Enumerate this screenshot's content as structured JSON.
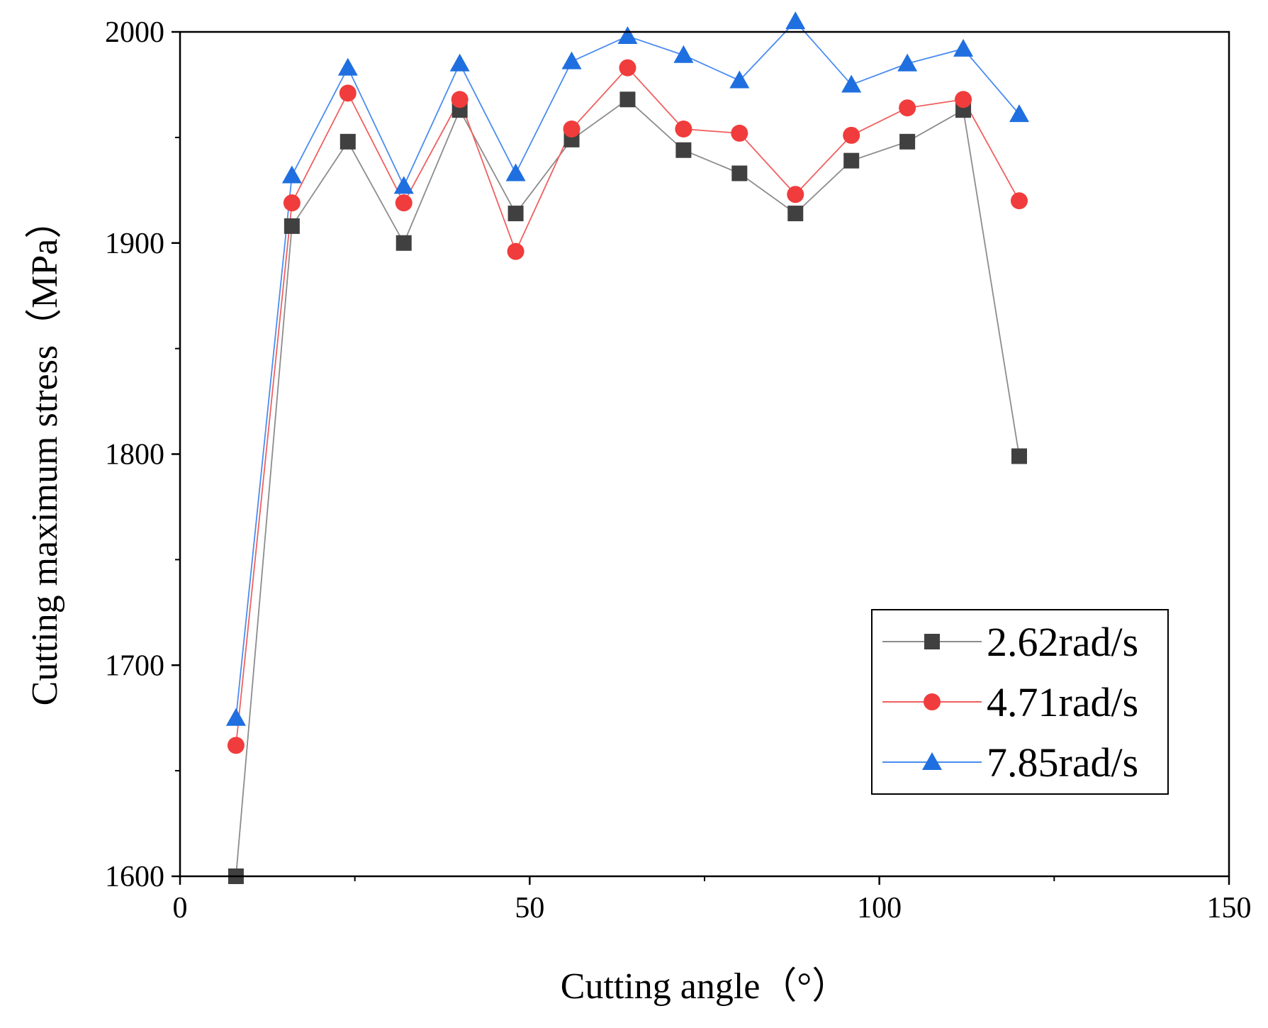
{
  "chart_data": {
    "type": "line",
    "title": "",
    "xlabel": "Cutting angle（°）",
    "ylabel": "Cutting maximum stress（MPa）",
    "xlim": [
      0,
      150
    ],
    "ylim": [
      1600,
      2000
    ],
    "xticks": [
      0,
      50,
      100,
      150
    ],
    "yticks": [
      1600,
      1700,
      1800,
      1900,
      2000
    ],
    "grid": false,
    "legend_position": "bottom-right",
    "x": [
      8,
      16,
      24,
      32,
      40,
      48,
      56,
      64,
      72,
      80,
      88,
      96,
      104,
      112,
      120
    ],
    "series": [
      {
        "name": "2.62rad/s",
        "marker": "square",
        "color": "#404040",
        "line_color": "#8c8c8c",
        "values": [
          1600,
          1908,
          1948,
          1900,
          1963,
          1914,
          1949,
          1968,
          1944,
          1933,
          1914,
          1939,
          1948,
          1963,
          1799
        ]
      },
      {
        "name": "4.71rad/s",
        "marker": "circle",
        "color": "#f03c3c",
        "line_color": "#f06060",
        "values": [
          1662,
          1919,
          1971,
          1919,
          1968,
          1896,
          1954,
          1983,
          1954,
          1952,
          1923,
          1951,
          1964,
          1968,
          1920
        ]
      },
      {
        "name": "7.85rad/s",
        "marker": "triangle",
        "color": "#1f6fe0",
        "line_color": "#4a8cf0",
        "values": [
          1675,
          1932,
          1983,
          1927,
          1985,
          1933,
          1986,
          1998,
          1989,
          1977,
          2005,
          1975,
          1985,
          1992,
          1961
        ]
      }
    ]
  }
}
